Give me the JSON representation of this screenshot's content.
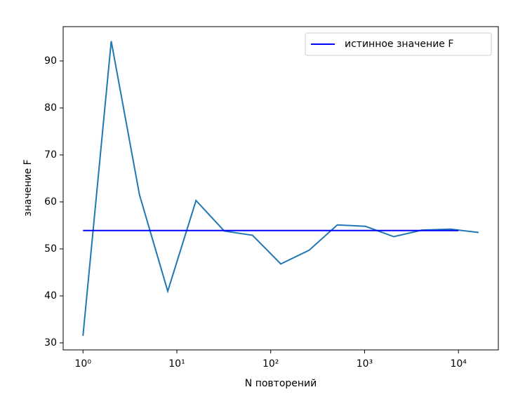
{
  "chart_data": {
    "type": "line",
    "xlabel": "N повторений",
    "ylabel": "значение F",
    "xscale": "log",
    "xlim": [
      0.615,
      26600
    ],
    "ylim": [
      28.5,
      97.3
    ],
    "xticks": [
      {
        "value": 1,
        "label": "10⁰"
      },
      {
        "value": 10,
        "label": "10¹"
      },
      {
        "value": 100,
        "label": "10²"
      },
      {
        "value": 1000,
        "label": "10³"
      },
      {
        "value": 10000,
        "label": "10⁴"
      }
    ],
    "yticks": [
      30,
      40,
      50,
      60,
      70,
      80,
      90
    ],
    "legend": "upper right",
    "series": [
      {
        "color": "#1f77b4",
        "x": [
          1,
          2,
          4,
          8,
          16,
          32,
          64,
          128,
          256,
          512,
          1024,
          2048,
          4096,
          8192,
          16384
        ],
        "values": [
          31.5,
          94.2,
          61.5,
          41.0,
          60.3,
          53.8,
          52.9,
          46.8,
          49.7,
          55.1,
          54.8,
          52.6,
          54.0,
          54.2,
          53.5
        ]
      },
      {
        "name": "истинное значение F",
        "color": "#0000ff",
        "x": [
          1,
          10000
        ],
        "values": [
          53.9,
          53.9
        ]
      }
    ]
  }
}
